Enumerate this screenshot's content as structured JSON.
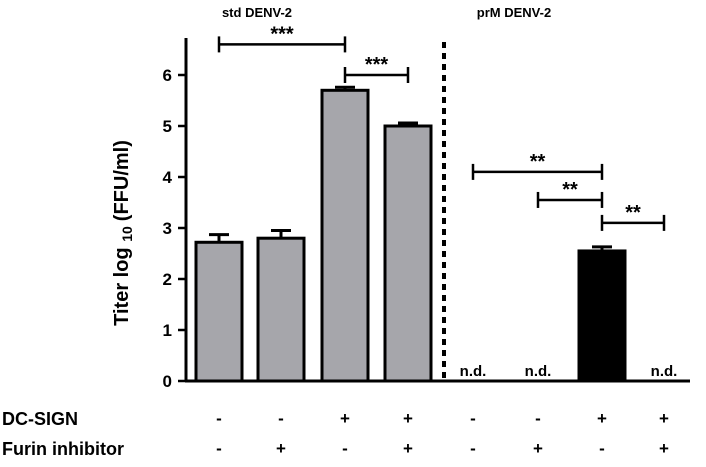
{
  "chart_data": {
    "type": "bar",
    "ylabel": "Titer log",
    "ylabel_sub": "10",
    "ylabel_unit": "(FFU/ml)",
    "ylim": [
      0,
      6.5
    ],
    "yticks": [
      "0",
      "1",
      "2",
      "3",
      "4",
      "5",
      "6"
    ],
    "panels": [
      {
        "label": "std DENV-2"
      },
      {
        "label": "prM DENV-2"
      }
    ],
    "bars": [
      {
        "value": 2.72,
        "error": 0.15,
        "color": "#a6a6ab",
        "nd": ""
      },
      {
        "value": 2.8,
        "error": 0.15,
        "color": "#a6a6ab",
        "nd": ""
      },
      {
        "value": 5.7,
        "error": 0.06,
        "color": "#a6a6ab",
        "nd": ""
      },
      {
        "value": 5.0,
        "error": 0.06,
        "color": "#a6a6ab",
        "nd": ""
      },
      {
        "value": 0,
        "error": 0,
        "color": "#a6a6ab",
        "nd": "n.d."
      },
      {
        "value": 0,
        "error": 0,
        "color": "#a6a6ab",
        "nd": "n.d."
      },
      {
        "value": 2.55,
        "error": 0.08,
        "color": "#000000",
        "nd": ""
      },
      {
        "value": 0,
        "error": 0,
        "color": "#000000",
        "nd": "n.d."
      }
    ],
    "conditions": [
      {
        "label": "DC-SIGN",
        "values": [
          "-",
          "-",
          "+",
          "+",
          "-",
          "-",
          "+",
          "+"
        ]
      },
      {
        "label": "Furin inhibitor",
        "values": [
          "-",
          "+",
          "-",
          "+",
          "-",
          "+",
          "-",
          "+"
        ]
      }
    ],
    "significance": [
      {
        "from": 0,
        "to": 2,
        "label": "***",
        "y": 6.6
      },
      {
        "from": 2,
        "to": 3,
        "label": "***",
        "y": 6.0
      },
      {
        "from": 4,
        "to": 6,
        "label": "**",
        "y": 4.1
      },
      {
        "from": 5,
        "to": 6,
        "label": "**",
        "y": 3.55
      },
      {
        "from": 6,
        "to": 7,
        "label": "**",
        "y": 3.1
      }
    ]
  }
}
